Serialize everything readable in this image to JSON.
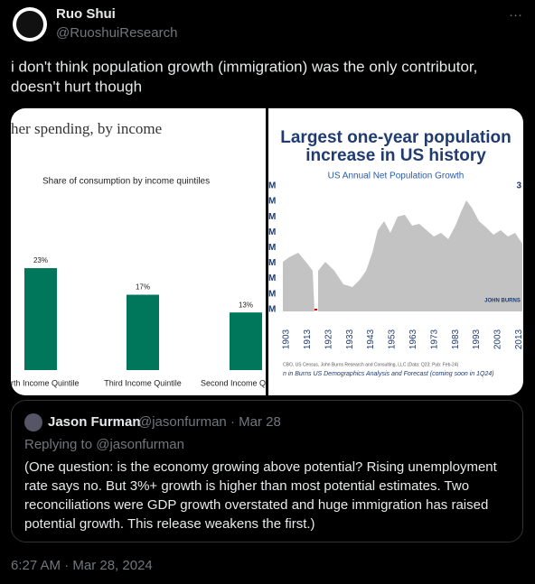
{
  "tweet": {
    "author": "Ruo Shui",
    "handle": "@RuoshuiResearch",
    "more": "···",
    "text_lines": [
      "i don't think population growth (immigration) was the only contributor,",
      "doesn't hurt though"
    ],
    "timestamp": "6:27 AM · Mar 28, 2024"
  },
  "media": {
    "left": {
      "title": "her spending, by income",
      "subtitle": "Share of consumption by income quintiles",
      "categories": [
        "rth Income Quintile",
        "Third Income Quintile",
        "Second Income Q"
      ],
      "values": [
        23,
        17,
        13
      ],
      "value_labels": [
        "23%",
        "17%",
        "13%"
      ],
      "color": "#00775a"
    },
    "right": {
      "title_lines": [
        "Largest one-year population",
        "increase in US history"
      ],
      "subtitle": "US Annual Net Population Growth",
      "y_labels": [
        "M",
        "M",
        "M",
        "M",
        "M",
        "M",
        "M",
        "M",
        "M"
      ],
      "corner_label": "3",
      "xticks": [
        "1903",
        "1913",
        "1923",
        "1933",
        "1943",
        "1953",
        "1963",
        "1973",
        "1983",
        "1993",
        "2003",
        "2013"
      ],
      "logo": "JOHN BURNS",
      "source": "CBO, US Census, John Burns Research and Consulting, LLC (Data: Q23; Pub: Feb-24)",
      "promo": "n in Burns US Demographics Analysis and Forecast (coming soon in 1Q24)"
    }
  },
  "quote": {
    "author": "Jason Furman",
    "meta": "@jasonfurman · Mar 28",
    "reply": "Replying to @jasonfurman",
    "text_lines": [
      "(One question: is the economy growing above potential? Rising unemployment",
      "rate says no. But 3%+ growth is higher than most potential estimates. Two",
      "reconciliations were GDP growth overstated and huge immigration has raised",
      "potential growth. This release weakens the first.)"
    ]
  }
}
